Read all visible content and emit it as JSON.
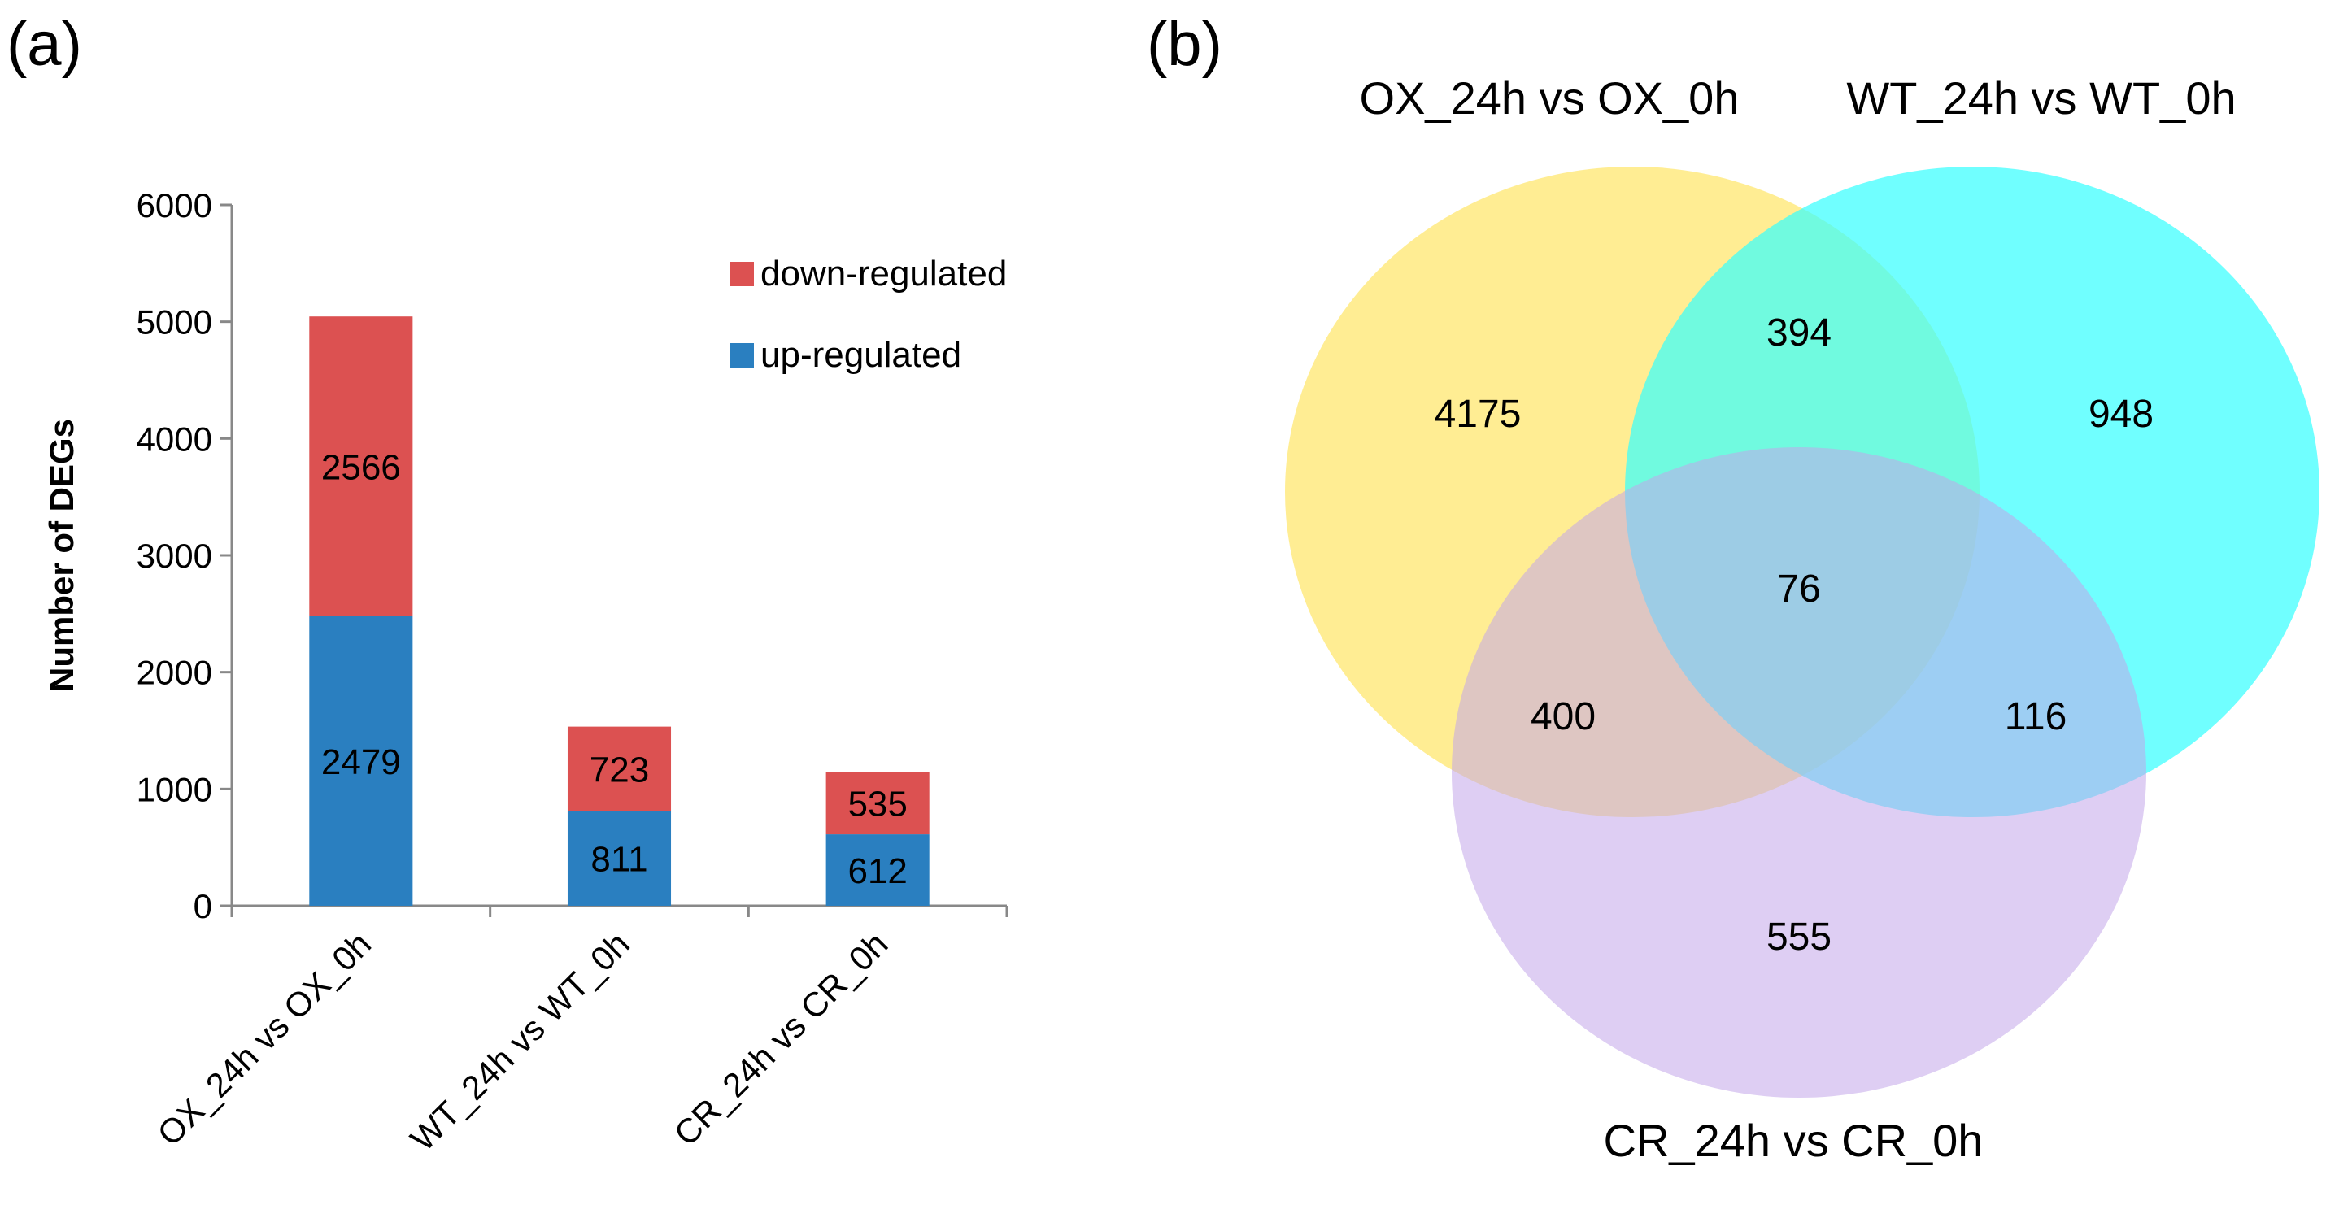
{
  "panel_labels": {
    "a": "(a)",
    "b": "(b)"
  },
  "chart_data": [
    {
      "type": "bar",
      "stacked": true,
      "ylabel": "Number of DEGs",
      "xlabel": "",
      "ylim": [
        0,
        6000
      ],
      "yticks": [
        0,
        1000,
        2000,
        3000,
        4000,
        5000,
        6000
      ],
      "categories": [
        "OX_24h vs OX_0h",
        "WT_24h vs WT_0h",
        "CR_24h vs CR_0h"
      ],
      "series": [
        {
          "name": "up-regulated",
          "color": "#2a7fc0",
          "values": [
            2479,
            811,
            612
          ],
          "labels": [
            "2479",
            "811",
            "612"
          ]
        },
        {
          "name": "down-regulated",
          "color": "#dc5151",
          "values": [
            2566,
            723,
            535
          ],
          "labels": [
            "2566",
            "723",
            "535"
          ]
        }
      ],
      "legend": {
        "position": "top-right",
        "entries": [
          "down-regulated",
          "up-regulated"
        ]
      }
    },
    {
      "type": "venn",
      "sets": [
        {
          "name": "OX_24h vs OX_0h",
          "color": "#ffea80"
        },
        {
          "name": "WT_24h vs WT_0h",
          "color": "#33ffff"
        },
        {
          "name": "CR_24h vs CR_0h",
          "color": "#d7c4f1"
        }
      ],
      "regions": [
        {
          "sets": [
            "OX"
          ],
          "value": "4175"
        },
        {
          "sets": [
            "WT"
          ],
          "value": "948"
        },
        {
          "sets": [
            "CR"
          ],
          "value": "555"
        },
        {
          "sets": [
            "OX",
            "WT"
          ],
          "value": "394"
        },
        {
          "sets": [
            "OX",
            "CR"
          ],
          "value": "400"
        },
        {
          "sets": [
            "WT",
            "CR"
          ],
          "value": "116"
        },
        {
          "sets": [
            "OX",
            "WT",
            "CR"
          ],
          "value": "76"
        }
      ]
    }
  ]
}
